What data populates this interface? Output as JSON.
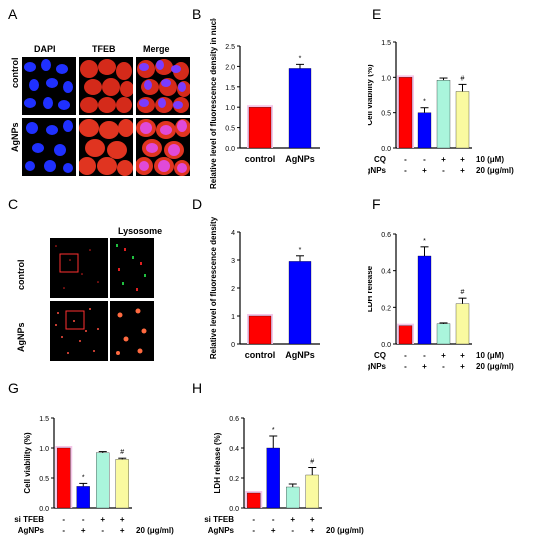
{
  "panels": {
    "A": {
      "letter": "A",
      "headers": [
        "DAPI",
        "TFEB",
        "Merge"
      ],
      "rows": [
        "control",
        "AgNPs"
      ]
    },
    "C": {
      "letter": "C",
      "header": "Lysosome",
      "rows": [
        "control",
        "AgNPs"
      ]
    },
    "B": {
      "letter": "B"
    },
    "D": {
      "letter": "D"
    },
    "E": {
      "letter": "E"
    },
    "F": {
      "letter": "F"
    },
    "G": {
      "letter": "G"
    },
    "H": {
      "letter": "H"
    }
  },
  "chart_data": [
    {
      "id": "B",
      "type": "bar",
      "categories": [
        "control",
        "AgNPs"
      ],
      "values": [
        1.0,
        1.95
      ],
      "errors": [
        0,
        0.1
      ],
      "significance": [
        "",
        "*"
      ],
      "colors": [
        "#ff0000",
        "#0000ff"
      ],
      "ylabel": "Relative level of fluorescence density in nucleus",
      "ylim": [
        0,
        2.5
      ],
      "yticks": [
        0.0,
        0.5,
        1.0,
        1.5,
        2.0,
        2.5
      ],
      "ytick_labels": [
        "0.0",
        "0.5",
        "1.0",
        "1.5",
        "2.0",
        "2.5"
      ]
    },
    {
      "id": "D",
      "type": "bar",
      "categories": [
        "control",
        "AgNPs"
      ],
      "values": [
        1.0,
        2.95
      ],
      "errors": [
        0,
        0.2
      ],
      "significance": [
        "",
        "*"
      ],
      "colors": [
        "#ff0000",
        "#0000ff"
      ],
      "ylabel": "Relative level of fluorescence density",
      "ylim": [
        0,
        4
      ],
      "yticks": [
        0,
        1,
        2,
        3,
        4
      ],
      "ytick_labels": [
        "0",
        "1",
        "2",
        "3",
        "4"
      ]
    },
    {
      "id": "E",
      "type": "bar",
      "values": [
        1.0,
        0.5,
        0.96,
        0.8
      ],
      "errors": [
        0,
        0.07,
        0.03,
        0.1
      ],
      "significance": [
        "",
        "*",
        "",
        "#"
      ],
      "colors": [
        "#ff0000",
        "#0000ff",
        "#aaf5dc",
        "#fafaa0"
      ],
      "ylabel": "Cell viability (%)",
      "ylim": [
        0,
        1.5
      ],
      "yticks": [
        0.0,
        0.5,
        1.0,
        1.5
      ],
      "ytick_labels": [
        "0.0",
        "0.5",
        "1.0",
        "1.5"
      ],
      "treatments": [
        {
          "name": "CQ",
          "signs": [
            "-",
            "-",
            "+",
            "+"
          ],
          "dose": "10 (μM)"
        },
        {
          "name": "AgNPs",
          "signs": [
            "-",
            "+",
            "-",
            "+"
          ],
          "dose": "20 (μg/ml)"
        }
      ]
    },
    {
      "id": "F",
      "type": "bar",
      "values": [
        0.1,
        0.48,
        0.11,
        0.22
      ],
      "errors": [
        0,
        0.05,
        0.005,
        0.03
      ],
      "significance": [
        "",
        "*",
        "",
        "#"
      ],
      "colors": [
        "#ff0000",
        "#0000ff",
        "#aaf5dc",
        "#fafaa0"
      ],
      "ylabel": "LDH release",
      "ylim": [
        0,
        0.6
      ],
      "yticks": [
        0.0,
        0.2,
        0.4,
        0.6
      ],
      "ytick_labels": [
        "0.0",
        "0.2",
        "0.4",
        "0.6"
      ],
      "treatments": [
        {
          "name": "CQ",
          "signs": [
            "-",
            "-",
            "+",
            "+"
          ],
          "dose": "10 (μM)"
        },
        {
          "name": "AgNPs",
          "signs": [
            "-",
            "+",
            "-",
            "+"
          ],
          "dose": "20 (μg/ml)"
        }
      ]
    },
    {
      "id": "G",
      "type": "bar",
      "values": [
        1.0,
        0.36,
        0.92,
        0.81
      ],
      "errors": [
        0,
        0.05,
        0.02,
        0.02
      ],
      "significance": [
        "",
        "*",
        "",
        "#"
      ],
      "colors": [
        "#ff0000",
        "#0000ff",
        "#aaf5dc",
        "#fafaa0"
      ],
      "ylabel": "Cell viability (%)",
      "ylim": [
        0,
        1.5
      ],
      "yticks": [
        0.0,
        0.5,
        1.0,
        1.5
      ],
      "ytick_labels": [
        "0.0",
        "0.5",
        "1.0",
        "1.5"
      ],
      "treatments": [
        {
          "name": "si TFEB",
          "signs": [
            "-",
            "-",
            "+",
            "+"
          ],
          "dose": ""
        },
        {
          "name": "AgNPs",
          "signs": [
            "-",
            "+",
            "-",
            "+"
          ],
          "dose": "20 (μg/ml)"
        }
      ]
    },
    {
      "id": "H",
      "type": "bar",
      "values": [
        0.1,
        0.4,
        0.14,
        0.22
      ],
      "errors": [
        0,
        0.08,
        0.02,
        0.05
      ],
      "significance": [
        "",
        "*",
        "",
        "#"
      ],
      "colors": [
        "#ff0000",
        "#0000ff",
        "#aaf5dc",
        "#fafaa0"
      ],
      "ylabel": "LDH release (%)",
      "ylim": [
        0,
        0.6
      ],
      "yticks": [
        0.0,
        0.2,
        0.4,
        0.6
      ],
      "ytick_labels": [
        "0.0",
        "0.2",
        "0.4",
        "0.6"
      ],
      "treatments": [
        {
          "name": "si TFEB",
          "signs": [
            "-",
            "-",
            "+",
            "+"
          ],
          "dose": ""
        },
        {
          "name": "AgNPs",
          "signs": [
            "-",
            "+",
            "-",
            "+"
          ],
          "dose": "20 (μg/ml)"
        }
      ]
    }
  ]
}
